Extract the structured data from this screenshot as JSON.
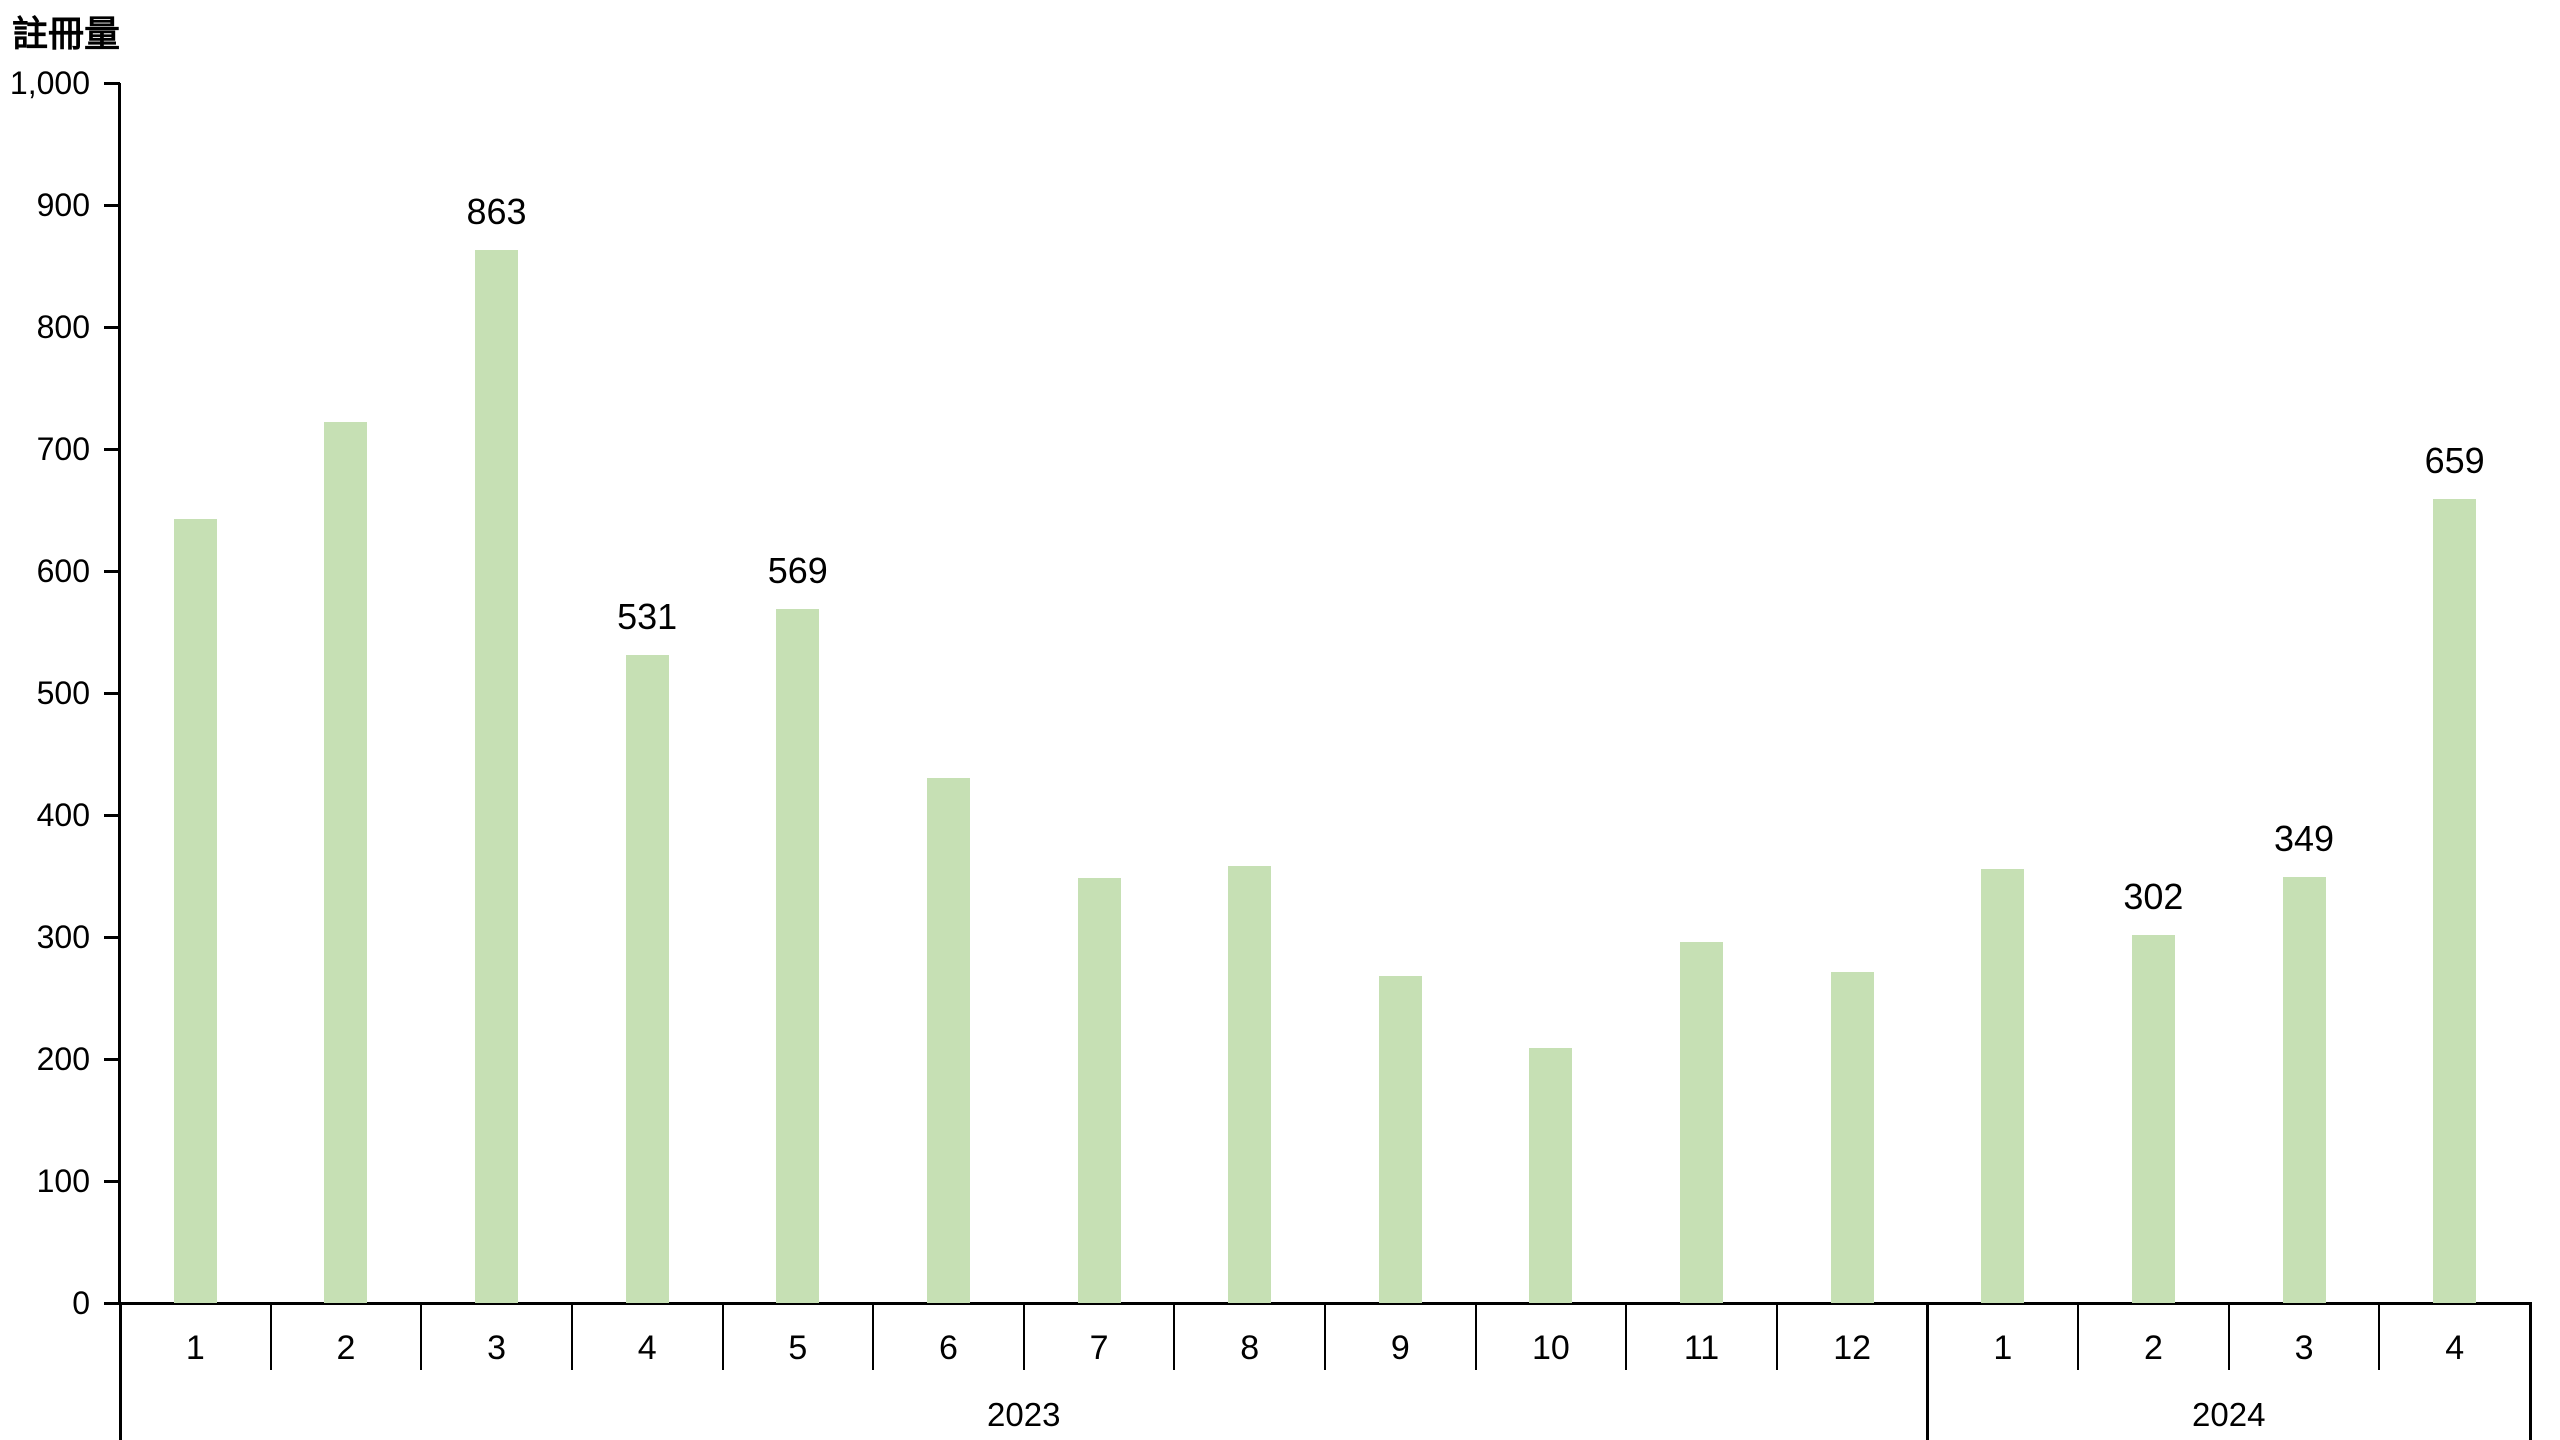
{
  "chart_data": {
    "type": "bar",
    "title": "",
    "ylabel": "註冊量",
    "xlabel": "",
    "ylim": [
      0,
      1000
    ],
    "y_tick_step": 100,
    "y_tick_labels": [
      "0",
      "100",
      "200",
      "300",
      "400",
      "500",
      "600",
      "700",
      "800",
      "900",
      "1,000"
    ],
    "grid": "off",
    "legend": "none",
    "bar_color": "#c6e0b4",
    "axis_color": "#000000",
    "text_color": "#000000",
    "groups": [
      {
        "year": "2023",
        "months": [
          "1",
          "2",
          "3",
          "4",
          "5",
          "6",
          "7",
          "8",
          "9",
          "10",
          "11",
          "12"
        ],
        "values": [
          643,
          722,
          863,
          531,
          569,
          430,
          348,
          358,
          268,
          209,
          296,
          271
        ],
        "shown_labels": [
          "",
          "",
          "863",
          "531",
          "569",
          "",
          "",
          "",
          "",
          "",
          "",
          ""
        ]
      },
      {
        "year": "2024",
        "months": [
          "1",
          "2",
          "3",
          "4"
        ],
        "values": [
          356,
          302,
          349,
          659
        ],
        "shown_labels": [
          "",
          "302",
          "349",
          "659"
        ]
      }
    ]
  }
}
